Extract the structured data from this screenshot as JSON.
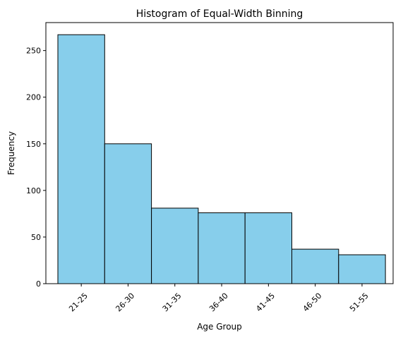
{
  "chart_data": {
    "type": "bar",
    "title": "Histogram of Equal-Width Binning",
    "xlabel": "Age Group",
    "ylabel": "Frequency",
    "categories": [
      "21-25",
      "26-30",
      "31-35",
      "36-40",
      "41-45",
      "46-50",
      "51-55"
    ],
    "values": [
      267,
      150,
      81,
      76,
      76,
      37,
      31
    ],
    "ylim": [
      0,
      280
    ],
    "yticks": [
      0,
      50,
      100,
      150,
      200,
      250
    ],
    "grid": false,
    "legend": "none",
    "bar_color": "#87CEEB",
    "edge_color": "#000000",
    "xtick_rotation": 45
  }
}
